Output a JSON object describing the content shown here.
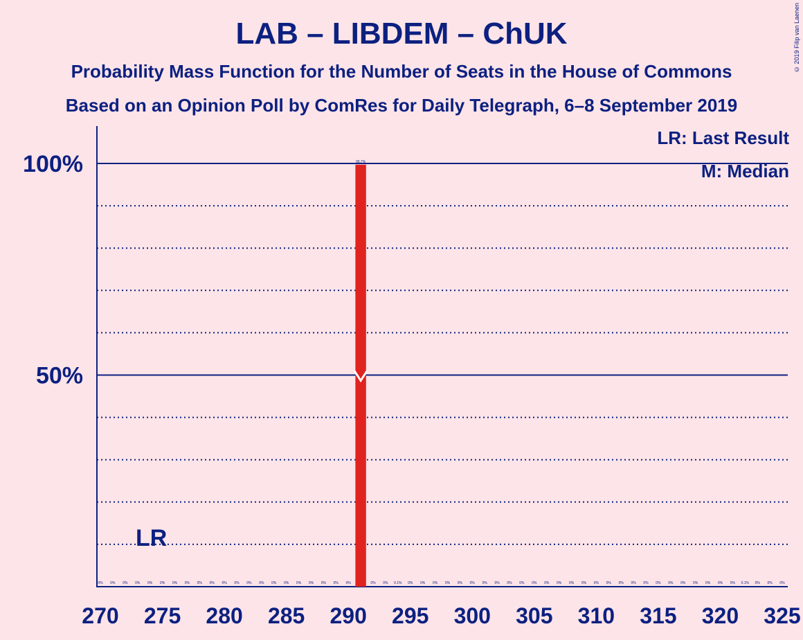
{
  "header": {
    "title": "LAB – LIBDEM – ChUK",
    "subtitle1": "Probability Mass Function for the Number of Seats in the House of Commons",
    "subtitle2": "Based on an Opinion Poll by ComRes for Daily Telegraph, 6–8 September 2019",
    "copyright": "© 2019 Filip van Laenen"
  },
  "legend": {
    "last_result": "LR: Last Result",
    "median": "M: Median"
  },
  "colors": {
    "background": "#fde4e8",
    "axis": "#0c2080",
    "bar": "#e0231f",
    "median_marker": "#ffffff"
  },
  "chart_data": {
    "type": "bar",
    "x_range": [
      270,
      325
    ],
    "x_ticks": [
      270,
      275,
      280,
      285,
      290,
      295,
      300,
      305,
      310,
      315,
      320,
      325
    ],
    "y_range": [
      0,
      100
    ],
    "y_ticks_labeled": [
      {
        "value": 50,
        "label": "50%"
      },
      {
        "value": 100,
        "label": "100%"
      }
    ],
    "y_gridlines_dotted": [
      10,
      20,
      30,
      40,
      60,
      70,
      80,
      90
    ],
    "last_result": {
      "seats": 274,
      "label": "LR"
    },
    "median": {
      "seats": 291,
      "label": "M"
    },
    "bars": [
      {
        "x": 270,
        "value": 0,
        "label": "0%"
      },
      {
        "x": 271,
        "value": 0,
        "label": "0%"
      },
      {
        "x": 272,
        "value": 0,
        "label": "0%"
      },
      {
        "x": 273,
        "value": 0,
        "label": "0%"
      },
      {
        "x": 274,
        "value": 0,
        "label": "0%"
      },
      {
        "x": 275,
        "value": 0,
        "label": "0%"
      },
      {
        "x": 276,
        "value": 0,
        "label": "0%"
      },
      {
        "x": 277,
        "value": 0,
        "label": "0%"
      },
      {
        "x": 278,
        "value": 0,
        "label": "0%"
      },
      {
        "x": 279,
        "value": 0,
        "label": "0%"
      },
      {
        "x": 280,
        "value": 0,
        "label": "0%"
      },
      {
        "x": 281,
        "value": 0,
        "label": "0%"
      },
      {
        "x": 282,
        "value": 0,
        "label": "0%"
      },
      {
        "x": 283,
        "value": 0,
        "label": "0%"
      },
      {
        "x": 284,
        "value": 0,
        "label": "0%"
      },
      {
        "x": 285,
        "value": 0,
        "label": "0%"
      },
      {
        "x": 286,
        "value": 0,
        "label": "0%"
      },
      {
        "x": 287,
        "value": 0,
        "label": "0%"
      },
      {
        "x": 288,
        "value": 0,
        "label": "0%"
      },
      {
        "x": 289,
        "value": 0,
        "label": "0%"
      },
      {
        "x": 290,
        "value": 0,
        "label": "0%"
      },
      {
        "x": 291,
        "value": 99.7,
        "label": "99.7%"
      },
      {
        "x": 292,
        "value": 0,
        "label": "0%"
      },
      {
        "x": 293,
        "value": 0,
        "label": "0%"
      },
      {
        "x": 294,
        "value": 0.1,
        "label": "0.1%"
      },
      {
        "x": 295,
        "value": 0,
        "label": "0%"
      },
      {
        "x": 296,
        "value": 0,
        "label": "0%"
      },
      {
        "x": 297,
        "value": 0,
        "label": "0%"
      },
      {
        "x": 298,
        "value": 0,
        "label": "0%"
      },
      {
        "x": 299,
        "value": 0,
        "label": "0%"
      },
      {
        "x": 300,
        "value": 0,
        "label": "0%"
      },
      {
        "x": 301,
        "value": 0,
        "label": "0%"
      },
      {
        "x": 302,
        "value": 0,
        "label": "0%"
      },
      {
        "x": 303,
        "value": 0,
        "label": "0%"
      },
      {
        "x": 304,
        "value": 0,
        "label": "0%"
      },
      {
        "x": 305,
        "value": 0,
        "label": "0%"
      },
      {
        "x": 306,
        "value": 0,
        "label": "0%"
      },
      {
        "x": 307,
        "value": 0,
        "label": "0%"
      },
      {
        "x": 308,
        "value": 0,
        "label": "0%"
      },
      {
        "x": 309,
        "value": 0,
        "label": "0%"
      },
      {
        "x": 310,
        "value": 0,
        "label": "0%"
      },
      {
        "x": 311,
        "value": 0,
        "label": "0%"
      },
      {
        "x": 312,
        "value": 0,
        "label": "0%"
      },
      {
        "x": 313,
        "value": 0,
        "label": "0%"
      },
      {
        "x": 314,
        "value": 0,
        "label": "0%"
      },
      {
        "x": 315,
        "value": 0,
        "label": "0%"
      },
      {
        "x": 316,
        "value": 0,
        "label": "0%"
      },
      {
        "x": 317,
        "value": 0,
        "label": "0%"
      },
      {
        "x": 318,
        "value": 0,
        "label": "0%"
      },
      {
        "x": 319,
        "value": 0,
        "label": "0%"
      },
      {
        "x": 320,
        "value": 0,
        "label": "0%"
      },
      {
        "x": 321,
        "value": 0,
        "label": "0%"
      },
      {
        "x": 322,
        "value": 0.1,
        "label": "0.1%"
      },
      {
        "x": 323,
        "value": 0,
        "label": "0%"
      },
      {
        "x": 324,
        "value": 0,
        "label": "0%"
      },
      {
        "x": 325,
        "value": 0,
        "label": "0%"
      }
    ]
  }
}
